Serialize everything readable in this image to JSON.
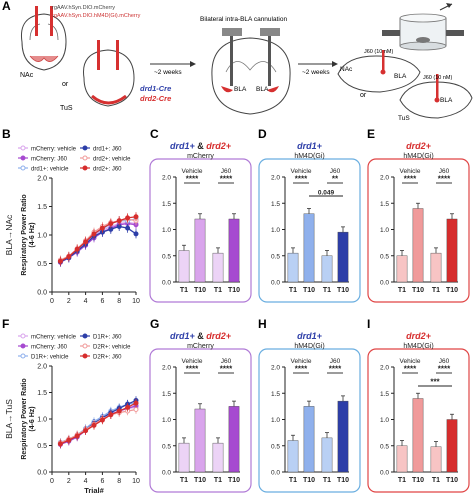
{
  "panel_letters": {
    "A": "A",
    "B": "B",
    "C": "C",
    "D": "D",
    "E": "E",
    "F": "F",
    "G": "G",
    "H": "H",
    "I": "I"
  },
  "schematic": {
    "virus_1": "rgAAV.hSyn.DIO.mCherry",
    "virus_2": "rgAAV.hSyn.DIO.hM4D(Gi).mCherry",
    "nac": "NAc",
    "or": "or",
    "tus": "TuS",
    "drd1_cre": "drd1-Cre",
    "drd2_cre": "drd2-Cre",
    "weeks_1": "~2 weeks",
    "cannulation": "Bilateral intra-BLA cannulation",
    "bla_left": "BLA",
    "bla_right": "BLA",
    "weeks_2": "~2 weeks",
    "j60_a": "J60 (10 nM)",
    "nac_2": "NAc",
    "bla_2": "BLA",
    "or_2": "or",
    "j60_b": "J60 (10 nM)",
    "bla_3": "BLA",
    "tus_2": "TuS"
  },
  "colors": {
    "mcherry_vehicle": "#d9a4ec",
    "mcherry_j60": "#a64ad0",
    "drd1": "#2d3ea8",
    "drd1_light": "#8fb0ec",
    "drd2": "#d62d2d",
    "drd2_light": "#f09a9a",
    "box_purple": "#b07ad6",
    "box_blue": "#6aaee0",
    "box_red": "#e04545"
  },
  "chart_data": [
    {
      "id": "B",
      "type": "line",
      "side_label": "BLA→NAc",
      "ylabel": "Respiratory Power Ratio\n(4-6 Hz)",
      "xlabel": "",
      "xlim": [
        0,
        10
      ],
      "ylim": [
        0,
        2.0
      ],
      "xticks": [
        "0",
        "2",
        "4",
        "6",
        "8",
        "10"
      ],
      "yticks": [
        "0.0",
        "0.5",
        "1.0",
        "1.5",
        "2.0"
      ],
      "legend": [
        "mCherry: vehicle",
        "drd1+: J60",
        "mCherry: J60",
        "drd2+: vehicle",
        "drd1+: vehicle",
        "drd2+: J60"
      ],
      "x": [
        1,
        2,
        3,
        4,
        5,
        6,
        7,
        8,
        9,
        10
      ],
      "series": [
        {
          "name": "mCherry: vehicle",
          "color": "#d9a4ec",
          "filled": false,
          "values": [
            0.55,
            0.6,
            0.72,
            0.85,
            1.0,
            1.08,
            1.15,
            1.2,
            1.22,
            1.2
          ]
        },
        {
          "name": "mCherry: J60",
          "color": "#a64ad0",
          "filled": true,
          "values": [
            0.52,
            0.6,
            0.7,
            0.82,
            0.95,
            1.05,
            1.12,
            1.18,
            1.2,
            1.18
          ]
        },
        {
          "name": "drd1+: vehicle",
          "color": "#8fb0ec",
          "filled": false,
          "values": [
            0.55,
            0.62,
            0.74,
            0.88,
            1.02,
            1.1,
            1.2,
            1.25,
            1.25,
            1.28
          ]
        },
        {
          "name": "drd1+: J60",
          "color": "#2d3ea8",
          "filled": true,
          "values": [
            0.53,
            0.6,
            0.72,
            0.84,
            0.98,
            1.05,
            1.1,
            1.15,
            1.12,
            1.02
          ]
        },
        {
          "name": "drd2+: vehicle",
          "color": "#f09a9a",
          "filled": false,
          "values": [
            0.56,
            0.63,
            0.76,
            0.9,
            1.05,
            1.15,
            1.22,
            1.25,
            1.28,
            1.25
          ]
        },
        {
          "name": "drd2+: J60",
          "color": "#d62d2d",
          "filled": true,
          "values": [
            0.54,
            0.62,
            0.75,
            0.88,
            1.02,
            1.12,
            1.2,
            1.25,
            1.3,
            1.32
          ]
        }
      ]
    },
    {
      "id": "F",
      "type": "line",
      "side_label": "BLA→TuS",
      "ylabel": "Respiratory Power Ratio\n(4-6 Hz)",
      "xlabel": "Trial#",
      "xlim": [
        0,
        10
      ],
      "ylim": [
        0,
        2.0
      ],
      "xticks": [
        "0",
        "2",
        "4",
        "6",
        "8",
        "10"
      ],
      "yticks": [
        "0.0",
        "0.5",
        "1.0",
        "1.5",
        "2.0"
      ],
      "legend": [
        "mCherry: vehicle",
        "D1R+: J60",
        "mCherry: J60",
        "D2R+: vehicle",
        "D1R+: vehicle",
        "D2R+: J60"
      ],
      "x": [
        1,
        2,
        3,
        4,
        5,
        6,
        7,
        8,
        9,
        10
      ],
      "series": [
        {
          "name": "mCherry: vehicle",
          "color": "#d9a4ec",
          "filled": false,
          "values": [
            0.55,
            0.6,
            0.68,
            0.8,
            0.92,
            1.0,
            1.1,
            1.15,
            1.2,
            1.22
          ]
        },
        {
          "name": "mCherry: J60",
          "color": "#a64ad0",
          "filled": true,
          "values": [
            0.52,
            0.58,
            0.66,
            0.78,
            0.9,
            1.0,
            1.08,
            1.15,
            1.2,
            1.25
          ]
        },
        {
          "name": "D1R+: vehicle",
          "color": "#8fb0ec",
          "filled": false,
          "values": [
            0.56,
            0.62,
            0.7,
            0.82,
            0.95,
            1.05,
            1.15,
            1.22,
            1.28,
            1.3
          ]
        },
        {
          "name": "D1R+: J60",
          "color": "#2d3ea8",
          "filled": true,
          "values": [
            0.54,
            0.6,
            0.68,
            0.8,
            0.92,
            1.02,
            1.12,
            1.2,
            1.28,
            1.35
          ]
        },
        {
          "name": "D2R+: vehicle",
          "color": "#f09a9a",
          "filled": false,
          "values": [
            0.55,
            0.62,
            0.7,
            0.8,
            0.9,
            1.0,
            1.08,
            1.12,
            1.15,
            1.18
          ]
        },
        {
          "name": "D2R+: J60",
          "color": "#d62d2d",
          "filled": true,
          "values": [
            0.53,
            0.6,
            0.68,
            0.78,
            0.88,
            0.98,
            1.08,
            1.15,
            1.22,
            1.3
          ]
        }
      ]
    },
    {
      "id": "C",
      "type": "bar",
      "title_parts": [
        {
          "text": "drd1+",
          "color": "#2d3ea8",
          "italic": true
        },
        {
          "text": " & ",
          "color": "#222",
          "italic": false
        },
        {
          "text": "drd2+",
          "color": "#d62d2d",
          "italic": true
        }
      ],
      "subtitle": "mCherry",
      "box": "#b07ad6",
      "ylim": [
        0,
        2.0
      ],
      "yticks": [
        "0.0",
        "0.5",
        "1.0",
        "1.5",
        "2.0"
      ],
      "groups": [
        "Vehicle",
        "J60"
      ],
      "categories": [
        "T1",
        "T10",
        "T1",
        "T10"
      ],
      "values": [
        0.6,
        1.2,
        0.55,
        1.2
      ],
      "colors": [
        "#ecd3f6",
        "#d9a4ec",
        "#ecd3f6",
        "#a64ad0"
      ],
      "sig": [
        {
          "i": 0,
          "j": 1,
          "label": "****"
        },
        {
          "i": 2,
          "j": 3,
          "label": "****"
        }
      ]
    },
    {
      "id": "D",
      "type": "bar",
      "title_parts": [
        {
          "text": "drd1+",
          "color": "#2d3ea8",
          "italic": true
        }
      ],
      "subtitle": "hM4D(Gi)",
      "box": "#6aaee0",
      "ylim": [
        0,
        2.0
      ],
      "yticks": [
        "0.0",
        "0.5",
        "1.0",
        "1.5",
        "2.0"
      ],
      "groups": [
        "Vehicle",
        "J60"
      ],
      "categories": [
        "T1",
        "T10",
        "T1",
        "T10"
      ],
      "values": [
        0.55,
        1.3,
        0.5,
        0.95
      ],
      "colors": [
        "#b9d0f4",
        "#8fb0ec",
        "#b9d0f4",
        "#2d3ea8"
      ],
      "sig": [
        {
          "i": 0,
          "j": 1,
          "label": "****"
        },
        {
          "i": 2,
          "j": 3,
          "label": "**"
        },
        {
          "i": 1,
          "j": 3,
          "label": "0.049"
        }
      ]
    },
    {
      "id": "E",
      "type": "bar",
      "title_parts": [
        {
          "text": "drd2+",
          "color": "#d62d2d",
          "italic": true
        }
      ],
      "subtitle": "hM4D(Gi)",
      "box": "#e04545",
      "ylim": [
        0,
        2.0
      ],
      "yticks": [
        "0.0",
        "0.5",
        "1.0",
        "1.5",
        "2.0"
      ],
      "groups": [
        "Vehicle",
        "J60"
      ],
      "categories": [
        "T1",
        "T10",
        "T1",
        "T10"
      ],
      "values": [
        0.5,
        1.4,
        0.55,
        1.2
      ],
      "colors": [
        "#f7c4c4",
        "#f09a9a",
        "#f7c4c4",
        "#d62d2d"
      ],
      "sig": [
        {
          "i": 0,
          "j": 1,
          "label": "****"
        },
        {
          "i": 2,
          "j": 3,
          "label": "****"
        }
      ]
    },
    {
      "id": "G",
      "type": "bar",
      "title_parts": [
        {
          "text": "drd1+",
          "color": "#2d3ea8",
          "italic": true
        },
        {
          "text": " & ",
          "color": "#222",
          "italic": false
        },
        {
          "text": "drd2+",
          "color": "#d62d2d",
          "italic": true
        }
      ],
      "subtitle": "mCherry",
      "box": "#b07ad6",
      "ylim": [
        0,
        2.0
      ],
      "yticks": [
        "0.0",
        "0.5",
        "1.0",
        "1.5",
        "2.0"
      ],
      "groups": [
        "Vehicle",
        "J60"
      ],
      "categories": [
        "T1",
        "T10",
        "T1",
        "T10"
      ],
      "values": [
        0.55,
        1.2,
        0.55,
        1.25
      ],
      "colors": [
        "#ecd3f6",
        "#d9a4ec",
        "#ecd3f6",
        "#a64ad0"
      ],
      "sig": [
        {
          "i": 0,
          "j": 1,
          "label": "****"
        },
        {
          "i": 2,
          "j": 3,
          "label": "****"
        }
      ]
    },
    {
      "id": "H",
      "type": "bar",
      "title_parts": [
        {
          "text": "drd1+",
          "color": "#2d3ea8",
          "italic": true
        }
      ],
      "subtitle": "hM4D(Gi)",
      "box": "#6aaee0",
      "ylim": [
        0,
        2.0
      ],
      "yticks": [
        "0.0",
        "0.5",
        "1.0",
        "1.5",
        "2.0"
      ],
      "groups": [
        "Vehicle",
        "J60"
      ],
      "categories": [
        "T1",
        "T10",
        "T1",
        "T10"
      ],
      "values": [
        0.6,
        1.25,
        0.65,
        1.35
      ],
      "colors": [
        "#b9d0f4",
        "#8fb0ec",
        "#b9d0f4",
        "#2d3ea8"
      ],
      "sig": [
        {
          "i": 0,
          "j": 1,
          "label": "****"
        },
        {
          "i": 2,
          "j": 3,
          "label": "****"
        }
      ]
    },
    {
      "id": "I",
      "type": "bar",
      "title_parts": [
        {
          "text": "drd2+",
          "color": "#d62d2d",
          "italic": true
        }
      ],
      "subtitle": "hM4D(Gi)",
      "box": "#e04545",
      "ylim": [
        0,
        2.0
      ],
      "yticks": [
        "0.0",
        "0.5",
        "1.0",
        "1.5",
        "2.0"
      ],
      "groups": [
        "Vehicle",
        "J60"
      ],
      "categories": [
        "T1",
        "T10",
        "T1",
        "T10"
      ],
      "values": [
        0.5,
        1.4,
        0.48,
        1.0
      ],
      "colors": [
        "#f7c4c4",
        "#f09a9a",
        "#f7c4c4",
        "#d62d2d"
      ],
      "sig": [
        {
          "i": 0,
          "j": 1,
          "label": "****"
        },
        {
          "i": 2,
          "j": 3,
          "label": "****"
        },
        {
          "i": 1,
          "j": 3,
          "label": "***"
        }
      ]
    }
  ]
}
